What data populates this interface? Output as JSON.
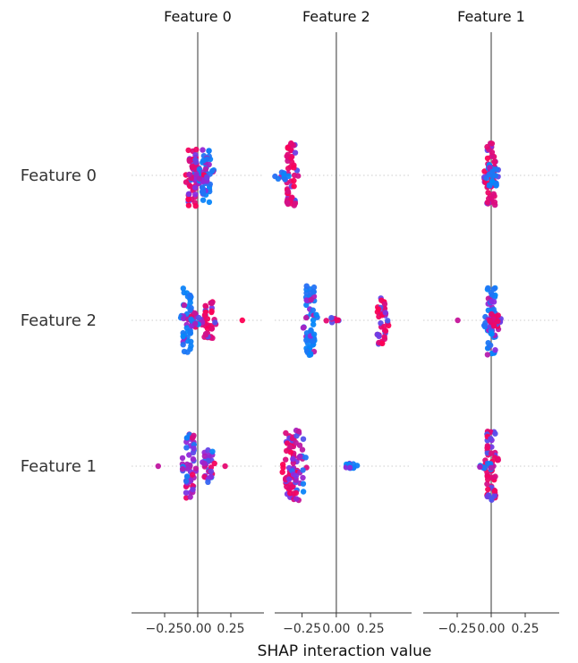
{
  "chart_data": {
    "type": "scatter",
    "subtype": "shap-interaction-beeswarm",
    "xlabel": "SHAP interaction value",
    "rows": [
      "Feature 0",
      "Feature 2",
      "Feature 1"
    ],
    "panels": [
      {
        "title": "Feature 0",
        "xlim": [
          -0.5,
          0.5
        ],
        "ticks": [
          -0.25,
          0.0,
          0.25
        ],
        "tick_labels": [
          "−0.25",
          "0.00",
          "0.25"
        ]
      },
      {
        "title": "Feature 2",
        "xlim": [
          -0.45,
          0.55
        ],
        "ticks": [
          -0.25,
          0.0,
          0.25
        ],
        "tick_labels": [
          "−0.25",
          "0.00",
          "0.25"
        ]
      },
      {
        "title": "Feature 1",
        "xlim": [
          -0.5,
          0.5
        ],
        "ticks": [
          -0.25,
          0.0,
          0.25
        ],
        "tick_labels": [
          "−0.25",
          "0.00",
          "0.25"
        ]
      }
    ],
    "color_scale": {
      "low": "#008bfb",
      "mid": "#8a2be2",
      "high": "#ff0052"
    },
    "cells": [
      {
        "row": 0,
        "panel": 0,
        "clusters": [
          {
            "x": -0.04,
            "n": 52,
            "spread": 0.58,
            "colors": "high"
          },
          {
            "x": -0.02,
            "n": 18,
            "spread": 0.15,
            "colors": "mixed"
          },
          {
            "x": 0.065,
            "n": 46,
            "spread": 0.5,
            "colors": "low"
          },
          {
            "x": 0.04,
            "n": 12,
            "spread": 0.12,
            "colors": "mixed"
          }
        ]
      },
      {
        "row": 0,
        "panel": 1,
        "clusters": [
          {
            "x": -0.33,
            "n": 50,
            "spread": 0.6,
            "colors": "high"
          },
          {
            "x": -0.4,
            "n": 10,
            "spread": 0.08,
            "colors": "low"
          }
        ]
      },
      {
        "row": 0,
        "panel": 2,
        "clusters": [
          {
            "x": 0.0,
            "n": 54,
            "spread": 0.6,
            "colors": "high"
          },
          {
            "x": 0.01,
            "n": 24,
            "spread": 0.2,
            "colors": "low"
          }
        ]
      },
      {
        "row": 1,
        "panel": 0,
        "clusters": [
          {
            "x": -0.08,
            "n": 45,
            "spread": 0.6,
            "colors": "low"
          },
          {
            "x": 0.08,
            "n": 40,
            "spread": 0.35,
            "colors": "high"
          },
          {
            "x": -0.02,
            "n": 30,
            "spread": 0.14,
            "colors": "mixed"
          },
          {
            "x": 0.28,
            "n": 1,
            "spread": 0.0,
            "colors": "high"
          }
        ]
      },
      {
        "row": 1,
        "panel": 1,
        "clusters": [
          {
            "x": -0.19,
            "n": 60,
            "spread": 0.65,
            "colors": "low"
          },
          {
            "x": -0.03,
            "n": 8,
            "spread": 0.05,
            "colors": "high"
          },
          {
            "x": 0.33,
            "n": 40,
            "spread": 0.45,
            "colors": "high"
          }
        ]
      },
      {
        "row": 1,
        "panel": 2,
        "clusters": [
          {
            "x": 0.0,
            "n": 55,
            "spread": 0.65,
            "colors": "low"
          },
          {
            "x": 0.02,
            "n": 22,
            "spread": 0.12,
            "colors": "high"
          },
          {
            "x": -0.22,
            "n": 1,
            "spread": 0.0,
            "colors": "mixed"
          }
        ]
      },
      {
        "row": 2,
        "panel": 0,
        "clusters": [
          {
            "x": -0.06,
            "n": 60,
            "spread": 0.6,
            "colors": "mixed"
          },
          {
            "x": 0.08,
            "n": 30,
            "spread": 0.32,
            "colors": "mixed"
          },
          {
            "x": -0.25,
            "n": 1,
            "spread": 0.0,
            "colors": "low"
          },
          {
            "x": 0.2,
            "n": 1,
            "spread": 0.0,
            "colors": "high"
          }
        ]
      },
      {
        "row": 2,
        "panel": 1,
        "clusters": [
          {
            "x": -0.34,
            "n": 62,
            "spread": 0.62,
            "colors": "high"
          },
          {
            "x": -0.27,
            "n": 34,
            "spread": 0.7,
            "colors": "mixed"
          },
          {
            "x": 0.1,
            "n": 12,
            "spread": 0.05,
            "colors": "low"
          }
        ]
      },
      {
        "row": 2,
        "panel": 2,
        "clusters": [
          {
            "x": 0.0,
            "n": 60,
            "spread": 0.65,
            "colors": "high"
          },
          {
            "x": -0.03,
            "n": 14,
            "spread": 0.06,
            "colors": "low"
          }
        ]
      }
    ]
  }
}
